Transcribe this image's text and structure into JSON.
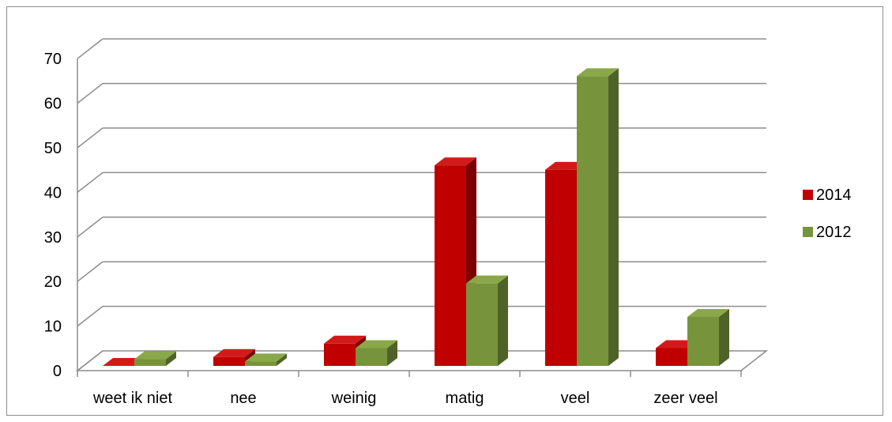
{
  "chart_data": {
    "type": "bar",
    "categories": [
      "weet ik niet",
      "nee",
      "weinig",
      "matig",
      "veel",
      "zeer veel"
    ],
    "series": [
      {
        "name": "2014",
        "values": [
          0,
          2,
          5,
          45,
          44,
          4
        ]
      },
      {
        "name": "2012",
        "values": [
          1.5,
          1,
          4,
          18.5,
          65,
          11
        ]
      }
    ],
    "y_ticks": [
      "0",
      "10",
      "20",
      "30",
      "40",
      "50",
      "60",
      "70"
    ],
    "ylim": [
      0,
      70
    ],
    "grid": true,
    "legend_position": "right",
    "title": "",
    "xlabel": "",
    "ylabel": "",
    "colors": {
      "2014": {
        "front": "#c00000",
        "top": "#d31a1a",
        "side": "#7c0000"
      },
      "2012": {
        "front": "#77933c",
        "top": "#8aa84a",
        "side": "#4f6328"
      }
    }
  }
}
